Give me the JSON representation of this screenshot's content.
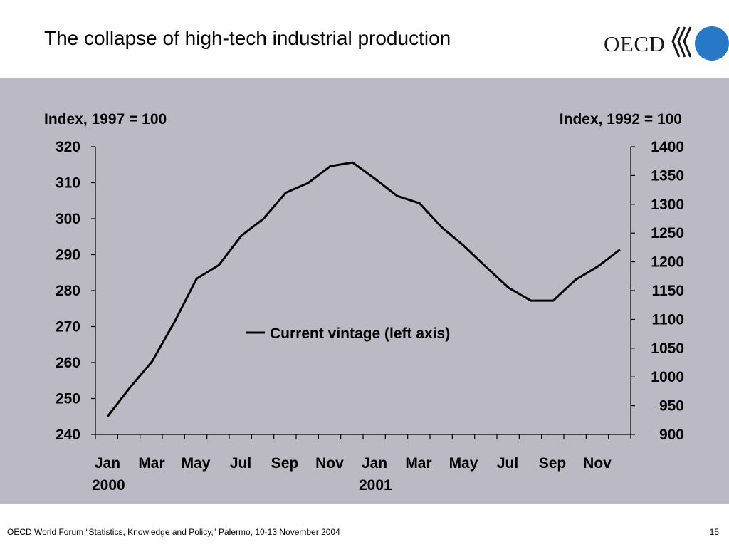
{
  "slide": {
    "title": "The collapse of high-tech industrial production",
    "logo_text": "OECD",
    "footer": "OECD World Forum “Statistics, Knowledge and Policy,” Palermo, 10-13 November 2004",
    "page_number": "15"
  },
  "colors": {
    "panel_background": "#bbb9c3",
    "line": "#000000",
    "logo_blue": "#2878c8"
  },
  "chart_data": {
    "type": "line",
    "title": "",
    "left_axis": {
      "label": "Index, 1997 = 100",
      "ylim": [
        240,
        320
      ],
      "ticks": [
        240,
        250,
        260,
        270,
        280,
        290,
        300,
        310,
        320
      ]
    },
    "right_axis": {
      "label": "Index, 1992 = 100",
      "ylim": [
        900,
        1400
      ],
      "ticks": [
        900,
        950,
        1000,
        1050,
        1100,
        1150,
        1200,
        1250,
        1300,
        1350,
        1400
      ]
    },
    "x_tick_labels": [
      {
        "month": "Jan",
        "year": "2000"
      },
      {
        "month": "Mar",
        "year": ""
      },
      {
        "month": "May",
        "year": ""
      },
      {
        "month": "Jul",
        "year": ""
      },
      {
        "month": "Sep",
        "year": ""
      },
      {
        "month": "Nov",
        "year": ""
      },
      {
        "month": "Jan",
        "year": "2001"
      },
      {
        "month": "Mar",
        "year": ""
      },
      {
        "month": "May",
        "year": ""
      },
      {
        "month": "Jul",
        "year": ""
      },
      {
        "month": "Sep",
        "year": ""
      },
      {
        "month": "Nov",
        "year": ""
      }
    ],
    "categories": [
      "Jan 2000",
      "Feb 2000",
      "Mar 2000",
      "Apr 2000",
      "May 2000",
      "Jun 2000",
      "Jul 2000",
      "Aug 2000",
      "Sep 2000",
      "Oct 2000",
      "Nov 2000",
      "Dec 2000",
      "Jan 2001",
      "Feb 2001",
      "Mar 2001",
      "Apr 2001",
      "May 2001",
      "Jun 2001",
      "Jul 2001",
      "Aug 2001",
      "Sep 2001",
      "Oct 2001",
      "Nov 2001",
      "Dec 2001"
    ],
    "series": [
      {
        "name": "Current vintage (left axis)",
        "axis": "left",
        "values": [
          245,
          253,
          260.3,
          271.2,
          283.3,
          287.1,
          295.2,
          300.0,
          307.2,
          309.9,
          314.6,
          315.6,
          311.1,
          306.3,
          304.3,
          297.6,
          292.4,
          286.5,
          280.8,
          277.2,
          277.2,
          283.0,
          286.7,
          291.4
        ]
      }
    ],
    "legend": {
      "position": "center"
    },
    "grid": false
  }
}
